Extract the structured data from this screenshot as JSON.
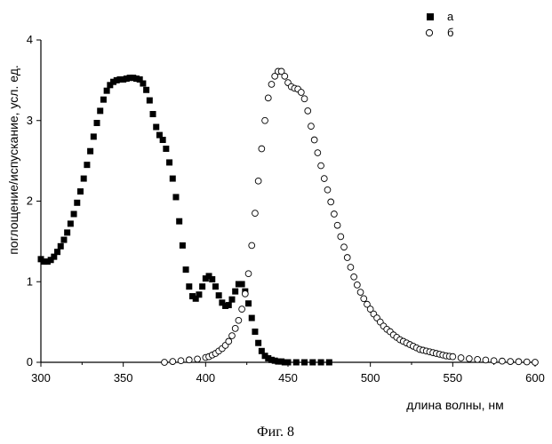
{
  "chart_data": {
    "type": "scatter",
    "caption": "Фиг. 8",
    "xlabel": "длина волны, нм",
    "ylabel": "поглощение/испускание, усл. ед.",
    "xlim": [
      300,
      600
    ],
    "ylim": [
      0,
      4
    ],
    "x_ticks": [
      "300",
      "350",
      "400",
      "450",
      "500",
      "550",
      "600"
    ],
    "y_ticks": [
      "0",
      "1",
      "2",
      "3",
      "4"
    ],
    "grid": false,
    "legend_position": "top-right",
    "series": [
      {
        "name": "а",
        "marker": "filled-square",
        "x": [
          300,
          302,
          304,
          306,
          308,
          310,
          312,
          314,
          316,
          318,
          320,
          322,
          324,
          326,
          328,
          330,
          332,
          334,
          336,
          338,
          340,
          342,
          344,
          346,
          348,
          350,
          352,
          354,
          356,
          358,
          360,
          362,
          364,
          366,
          368,
          370,
          372,
          374,
          376,
          378,
          380,
          382,
          384,
          386,
          388,
          390,
          392,
          394,
          396,
          398,
          400,
          402,
          404,
          406,
          408,
          410,
          412,
          414,
          416,
          418,
          420,
          422,
          424,
          426,
          428,
          430,
          432,
          434,
          436,
          438,
          440,
          442,
          444,
          446,
          448,
          450,
          455,
          460,
          465,
          470,
          475
        ],
        "y": [
          1.28,
          1.25,
          1.25,
          1.27,
          1.31,
          1.37,
          1.44,
          1.52,
          1.61,
          1.72,
          1.84,
          1.98,
          2.12,
          2.28,
          2.45,
          2.62,
          2.8,
          2.97,
          3.12,
          3.26,
          3.37,
          3.44,
          3.48,
          3.5,
          3.51,
          3.51,
          3.52,
          3.53,
          3.53,
          3.52,
          3.51,
          3.46,
          3.38,
          3.25,
          3.08,
          2.92,
          2.82,
          2.76,
          2.65,
          2.48,
          2.28,
          2.05,
          1.75,
          1.45,
          1.15,
          0.94,
          0.82,
          0.79,
          0.84,
          0.94,
          1.04,
          1.07,
          1.03,
          0.94,
          0.83,
          0.74,
          0.7,
          0.71,
          0.78,
          0.88,
          0.97,
          0.97,
          0.88,
          0.73,
          0.55,
          0.38,
          0.24,
          0.14,
          0.08,
          0.05,
          0.03,
          0.02,
          0.01,
          0.01,
          0.0,
          0.0,
          0.0,
          0.0,
          0.0,
          0.0,
          0.0
        ]
      },
      {
        "name": "б",
        "marker": "open-circle",
        "x": [
          375,
          380,
          385,
          390,
          395,
          400,
          402,
          404,
          406,
          408,
          410,
          412,
          414,
          416,
          418,
          420,
          422,
          424,
          426,
          428,
          430,
          432,
          434,
          436,
          438,
          440,
          442,
          444,
          446,
          448,
          450,
          452,
          454,
          456,
          458,
          460,
          462,
          464,
          466,
          468,
          470,
          472,
          474,
          476,
          478,
          480,
          482,
          484,
          486,
          488,
          490,
          492,
          494,
          496,
          498,
          500,
          502,
          504,
          506,
          508,
          510,
          512,
          514,
          516,
          518,
          520,
          522,
          524,
          526,
          528,
          530,
          532,
          534,
          536,
          538,
          540,
          542,
          544,
          546,
          548,
          550,
          555,
          560,
          565,
          570,
          575,
          580,
          585,
          590,
          595,
          600
        ],
        "y": [
          0.0,
          0.01,
          0.02,
          0.03,
          0.04,
          0.06,
          0.07,
          0.09,
          0.11,
          0.14,
          0.17,
          0.21,
          0.26,
          0.33,
          0.42,
          0.52,
          0.66,
          0.85,
          1.1,
          1.45,
          1.85,
          2.25,
          2.65,
          3.0,
          3.28,
          3.45,
          3.55,
          3.61,
          3.61,
          3.55,
          3.47,
          3.42,
          3.4,
          3.39,
          3.35,
          3.27,
          3.12,
          2.93,
          2.76,
          2.6,
          2.44,
          2.28,
          2.14,
          1.99,
          1.84,
          1.7,
          1.56,
          1.43,
          1.3,
          1.18,
          1.06,
          0.96,
          0.87,
          0.79,
          0.72,
          0.66,
          0.6,
          0.55,
          0.5,
          0.45,
          0.41,
          0.38,
          0.34,
          0.31,
          0.28,
          0.26,
          0.24,
          0.22,
          0.2,
          0.18,
          0.16,
          0.15,
          0.14,
          0.13,
          0.12,
          0.11,
          0.1,
          0.09,
          0.08,
          0.075,
          0.07,
          0.055,
          0.045,
          0.035,
          0.028,
          0.02,
          0.015,
          0.01,
          0.008,
          0.005,
          0.0
        ]
      }
    ]
  }
}
